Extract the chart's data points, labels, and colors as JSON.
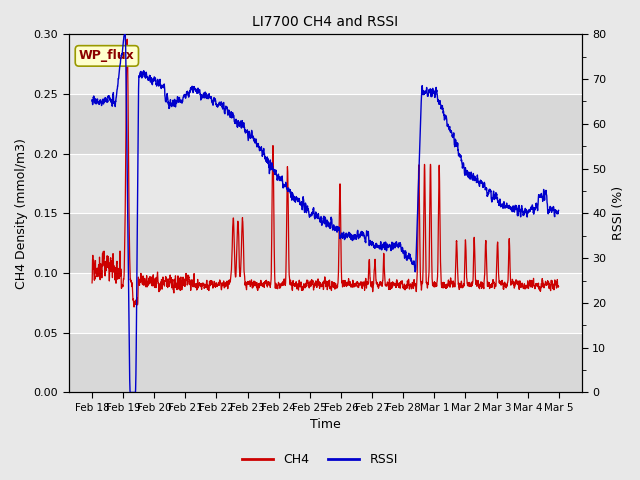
{
  "title": "LI7700 CH4 and RSSI",
  "xlabel": "Time",
  "ylabel_left": "CH4 Density (mmol/m3)",
  "ylabel_right": "RSSI (%)",
  "ylim_left": [
    0.0,
    0.3
  ],
  "ylim_right": [
    0,
    80
  ],
  "yticks_left": [
    0.0,
    0.05,
    0.1,
    0.15,
    0.2,
    0.25,
    0.3
  ],
  "yticks_right": [
    0,
    10,
    20,
    30,
    40,
    50,
    60,
    70,
    80
  ],
  "ch4_color": "#cc0000",
  "rssi_color": "#0000cc",
  "fig_bg_color": "#e8e8e8",
  "band_colors": [
    "#d8d8d8",
    "#e8e8e8"
  ],
  "legend_ch4": "CH4",
  "legend_rssi": "RSSI",
  "annotation_text": "WP_flux",
  "figsize": [
    6.4,
    4.8
  ],
  "dpi": 100
}
